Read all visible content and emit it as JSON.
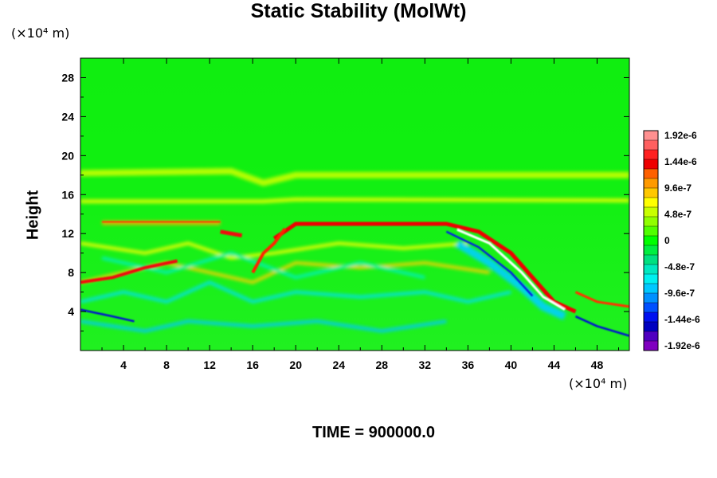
{
  "chart_data": {
    "type": "heatmap",
    "title": "Static Stability (MolWt)",
    "ylabel": "Height",
    "xunit": "(×10⁴ m)",
    "yunit": "(×10⁴ m)",
    "xlim": [
      0,
      51
    ],
    "ylim": [
      0,
      30
    ],
    "xticks": [
      4,
      8,
      12,
      16,
      20,
      24,
      28,
      32,
      36,
      40,
      44,
      48
    ],
    "yticks": [
      4,
      8,
      12,
      16,
      20,
      24,
      28
    ],
    "colorbar": {
      "min": -1.92e-06,
      "max": 1.92e-06,
      "labels": [
        "1.92e-6",
        "1.44e-6",
        "9.6e-7",
        "4.8e-7",
        "0",
        "-4.8e-7",
        "-9.6e-7",
        "-1.44e-6",
        "-1.92e-6"
      ],
      "colors": [
        "#ff9090",
        "#ff6060",
        "#ff2020",
        "#ee0000",
        "#ff6000",
        "#ff9a00",
        "#ffc800",
        "#ffff00",
        "#c8ff00",
        "#90ff00",
        "#50ff00",
        "#00ff00",
        "#00ee40",
        "#00e080",
        "#00e8c0",
        "#00f0f0",
        "#00c8ff",
        "#0090ff",
        "#0050ff",
        "#0010f0",
        "#0000c0",
        "#5000c0",
        "#8000c0"
      ]
    },
    "features": [
      {
        "name": "tropopause-band",
        "x": [
          20,
          34
        ],
        "y": 13,
        "value": 1.92e-06
      },
      {
        "name": "descending-front",
        "x": [
          35,
          45
        ],
        "y": [
          12,
          4
        ],
        "value": 1.9e-06
      },
      {
        "name": "upper-layer",
        "x": [
          0,
          51
        ],
        "y": 18,
        "value": 4.8e-07
      }
    ]
  },
  "footer": {
    "time_label": "TIME = 900000.0"
  }
}
